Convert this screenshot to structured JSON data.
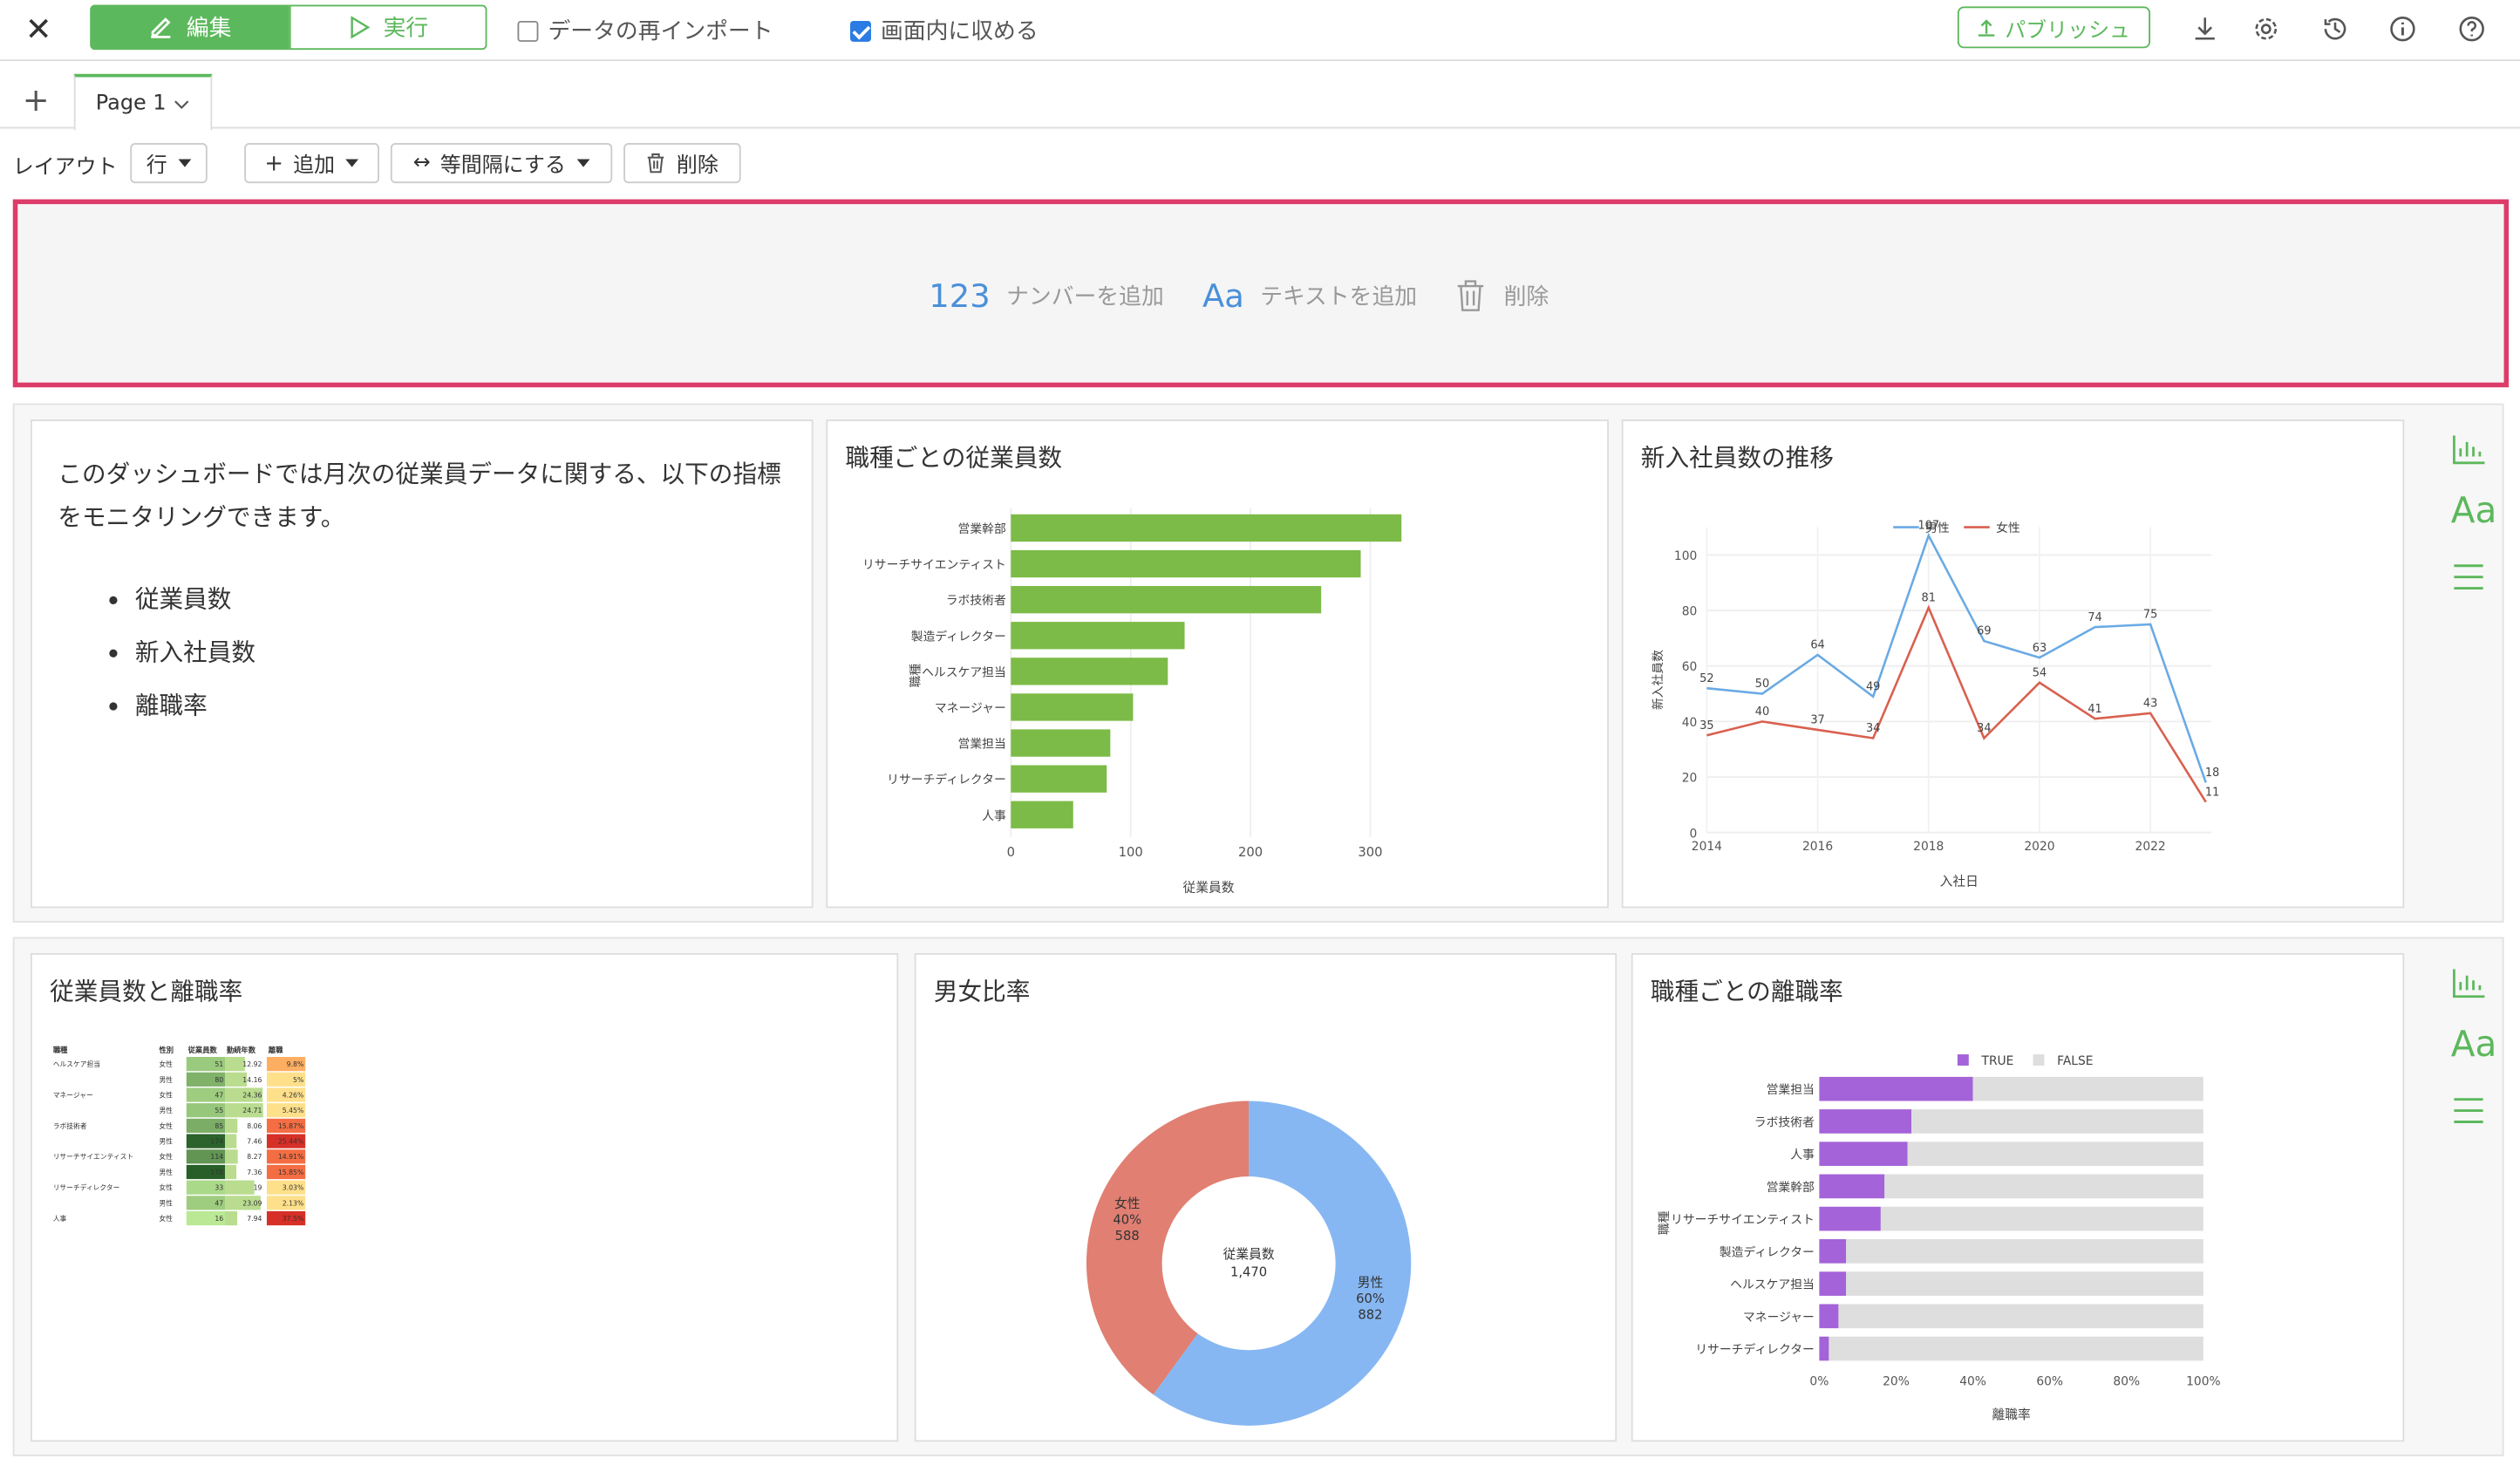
{
  "toolbar": {
    "edit_label": "編集",
    "run_label": "実行",
    "reimport_label": "データの再インポート",
    "fit_label": "画面内に収める",
    "publish_label": "パブリッシュ"
  },
  "tabs": [
    {
      "label": "Page 1"
    }
  ],
  "layout_bar": {
    "layout_label": "レイアウト",
    "layout_value": "行",
    "add_label": "追加",
    "equal_label": "等間隔にする",
    "delete_label": "削除"
  },
  "empty_row": {
    "number_icon": "123",
    "number_label": "ナンバーを追加",
    "text_icon": "Aa",
    "text_label": "テキストを追加",
    "delete_label": "削除"
  },
  "side_panel": {
    "text_icon": "Aa"
  },
  "text_card": {
    "paragraph": "このダッシュボードでは月次の従業員データに関する、以下の指標をモニタリングできます。",
    "bullets": [
      "従業員数",
      "新入社員数",
      "離職率"
    ]
  },
  "chart_data": [
    {
      "type": "bar",
      "orientation": "horizontal",
      "title": "職種ごとの従業員数",
      "xlabel": "従業員数",
      "ylabel": "職種",
      "categories": [
        "営業幹部",
        "リサーチサイエンティスト",
        "ラボ技術者",
        "製造ディレクター",
        "ヘルスケア担当",
        "マネージャー",
        "営業担当",
        "リサーチディレクター",
        "人事"
      ],
      "values": [
        326,
        292,
        259,
        145,
        131,
        102,
        83,
        80,
        52
      ],
      "xlim": [
        0,
        330
      ],
      "xticks": [
        "0",
        "100",
        "200",
        "300"
      ],
      "color": "#7cbb47"
    },
    {
      "type": "line",
      "title": "新入社員数の推移",
      "xlabel": "入社日",
      "ylabel": "新入社員数",
      "x": [
        2014,
        2015,
        2016,
        2017,
        2018,
        2019,
        2020,
        2021,
        2022,
        2023
      ],
      "xticks": [
        "2014",
        "2016",
        "2018",
        "2020",
        "2022"
      ],
      "yticks": [
        "0",
        "20",
        "40",
        "60",
        "80",
        "100"
      ],
      "ylim": [
        0,
        110
      ],
      "legend_position": "top",
      "series": [
        {
          "name": "男性",
          "color": "#6aaae4",
          "values": [
            52,
            50,
            64,
            49,
            107,
            69,
            63,
            74,
            75,
            18
          ]
        },
        {
          "name": "女性",
          "color": "#d9604f",
          "values": [
            35,
            40,
            37,
            34,
            81,
            34,
            54,
            41,
            43,
            11
          ]
        }
      ]
    },
    {
      "type": "table",
      "title": "従業員数と離職率",
      "columns": [
        "職種",
        "性別",
        "従業員数",
        "勤続年数",
        "離職"
      ],
      "rows": [
        [
          "ヘルスケア担当",
          "女性",
          "51",
          "12.92",
          "9.8%"
        ],
        [
          "",
          "男性",
          "80",
          "14.16",
          "5%"
        ],
        [
          "マネージャー",
          "女性",
          "47",
          "24.36",
          "4.26%"
        ],
        [
          "",
          "男性",
          "55",
          "24.71",
          "5.45%"
        ],
        [
          "ラボ技術者",
          "女性",
          "85",
          "8.06",
          "15.87%"
        ],
        [
          "",
          "男性",
          "174",
          "7.46",
          "25.44%"
        ],
        [
          "リサーチサイエンティスト",
          "女性",
          "114",
          "8.27",
          "14.91%"
        ],
        [
          "",
          "男性",
          "178",
          "7.36",
          "15.85%"
        ],
        [
          "リサーチディレクター",
          "女性",
          "33",
          "19",
          "3.03%"
        ],
        [
          "",
          "男性",
          "47",
          "23.09",
          "2.13%"
        ],
        [
          "人事",
          "女性",
          "16",
          "7.94",
          "37.5%"
        ]
      ]
    },
    {
      "type": "pie",
      "title": "男女比率",
      "center_label": "従業員数",
      "center_value": "1,470",
      "slices": [
        {
          "name": "男性",
          "percent": "60%",
          "value": 882,
          "color": "#86b7f2"
        },
        {
          "name": "女性",
          "percent": "40%",
          "value": 588,
          "color": "#e07f72"
        }
      ]
    },
    {
      "type": "bar",
      "orientation": "horizontal",
      "stacked": "percent",
      "title": "職種ごとの離職率",
      "xlabel": "離職率",
      "ylabel": "職種",
      "categories": [
        "営業担当",
        "ラボ技術者",
        "人事",
        "営業幹部",
        "リサーチサイエンティスト",
        "製造ディレクター",
        "ヘルスケア担当",
        "マネージャー",
        "リサーチディレクター"
      ],
      "legend_position": "top",
      "xticks": [
        "0%",
        "20%",
        "40%",
        "60%",
        "80%",
        "100%"
      ],
      "series": [
        {
          "name": "TRUE",
          "color": "#a463d8",
          "values": [
            40,
            24,
            23,
            17,
            16,
            7,
            7,
            5,
            2.5
          ]
        },
        {
          "name": "FALSE",
          "color": "#dedede",
          "values": [
            60,
            76,
            77,
            83,
            84,
            93,
            93,
            95,
            97.5
          ]
        }
      ]
    }
  ]
}
